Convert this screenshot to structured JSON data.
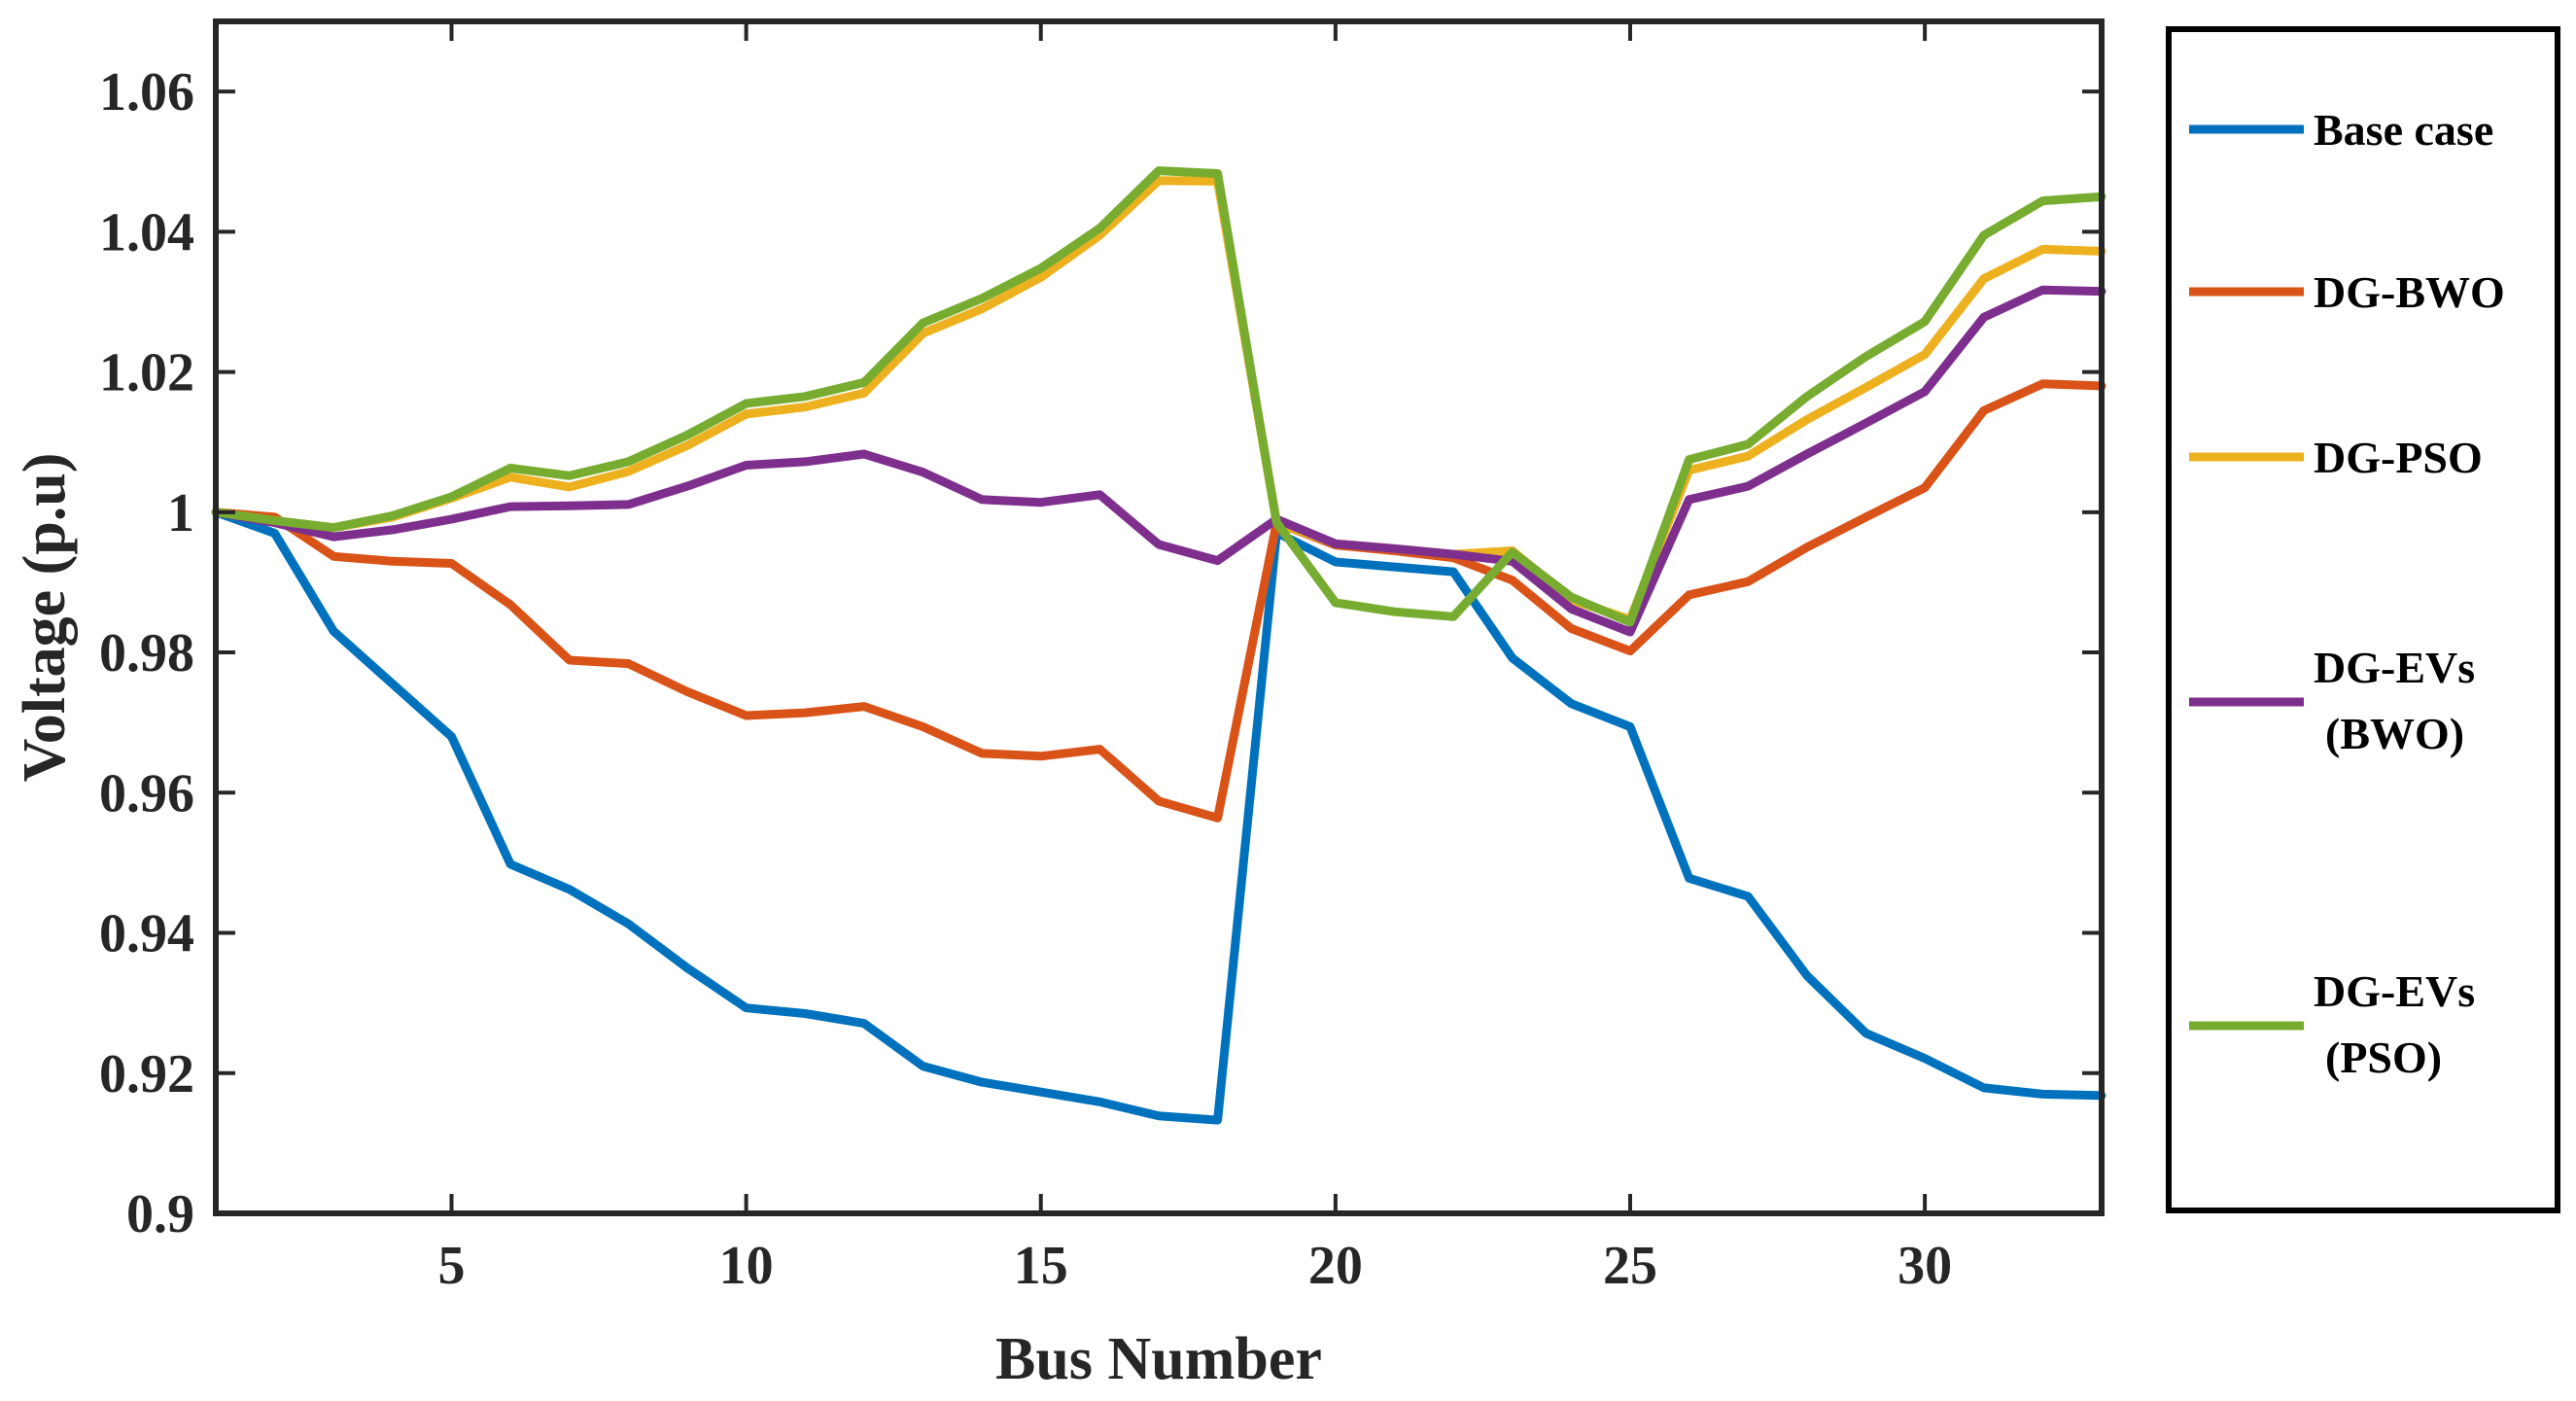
{
  "chart_data": {
    "type": "line",
    "title": "",
    "xlabel": "Bus Number",
    "ylabel": "Voltage (p.u)",
    "xlim": [
      1,
      33
    ],
    "ylim": [
      0.9,
      1.07
    ],
    "xticks": [
      5,
      10,
      15,
      20,
      25,
      30
    ],
    "yticks": [
      0.9,
      0.92,
      0.94,
      0.96,
      0.98,
      1,
      1.02,
      1.04,
      1.06
    ],
    "ytick_labels": [
      "0.9",
      "0.92",
      "0.94",
      "0.96",
      "0.98",
      "1",
      "1.02",
      "1.04",
      "1.06"
    ],
    "grid": false,
    "legend_position": "outside-right",
    "x": [
      1,
      2,
      3,
      4,
      5,
      6,
      7,
      8,
      9,
      10,
      11,
      12,
      13,
      14,
      15,
      16,
      17,
      18,
      19,
      20,
      21,
      22,
      23,
      24,
      25,
      26,
      27,
      28,
      29,
      30,
      31,
      32,
      33
    ],
    "series": [
      {
        "name": "Base case",
        "legend_lines": [
          "Base case"
        ],
        "color": "#0072BD",
        "values": [
          1.0,
          0.997,
          0.983,
          0.9755,
          0.968,
          0.9498,
          0.9462,
          0.9413,
          0.935,
          0.9293,
          0.9285,
          0.9271,
          0.921,
          0.9187,
          0.9173,
          0.9159,
          0.9139,
          0.9133,
          0.9971,
          0.9929,
          0.9922,
          0.9915,
          0.9792,
          0.9727,
          0.9694,
          0.9478,
          0.9452,
          0.9339,
          0.9257,
          0.9221,
          0.9179,
          0.917,
          0.9168
        ]
      },
      {
        "name": "DG-BWO",
        "legend_lines": [
          "DG-BWO"
        ],
        "color": "#D95319",
        "values": [
          1.0,
          0.9993,
          0.9937,
          0.993,
          0.9927,
          0.9868,
          0.9789,
          0.9784,
          0.9744,
          0.971,
          0.9714,
          0.9723,
          0.9694,
          0.9656,
          0.9652,
          0.9662,
          0.9588,
          0.9564,
          0.9985,
          0.9953,
          0.9945,
          0.9935,
          0.9903,
          0.9834,
          0.9802,
          0.9882,
          0.9901,
          0.995,
          0.9993,
          1.0035,
          1.0145,
          1.0183,
          1.018
        ]
      },
      {
        "name": "DG-PSO",
        "legend_lines": [
          "DG-PSO"
        ],
        "color": "#EDB120",
        "values": [
          1.0,
          0.9988,
          0.9978,
          0.9993,
          1.002,
          1.005,
          1.0036,
          1.0058,
          1.0095,
          1.014,
          1.015,
          1.017,
          1.0255,
          1.029,
          1.0335,
          1.0395,
          1.0473,
          1.0472,
          0.9985,
          0.9955,
          0.9948,
          0.994,
          0.9945,
          0.9875,
          0.9847,
          1.006,
          1.008,
          1.0132,
          1.0178,
          1.0225,
          1.0333,
          1.0375,
          1.0372
        ]
      },
      {
        "name": "DG-EVs (BWO)",
        "legend_lines": [
          "DG-EVs",
          "(BWO)"
        ],
        "color": "#7E2F8E",
        "values": [
          1.0,
          0.9985,
          0.9965,
          0.9975,
          0.999,
          1.0008,
          1.0009,
          1.0011,
          1.0037,
          1.0067,
          1.0072,
          1.0083,
          1.0057,
          1.0018,
          1.0014,
          1.0025,
          0.9954,
          0.9931,
          0.999,
          0.9955,
          0.9948,
          0.994,
          0.993,
          0.9862,
          0.9829,
          1.0018,
          1.0037,
          1.0083,
          1.0127,
          1.0172,
          1.0278,
          1.0317,
          1.0315
        ]
      },
      {
        "name": "DG-EVs (PSO)",
        "legend_lines": [
          "DG-EVs",
          "(PSO)"
        ],
        "color": "#77AC30",
        "values": [
          1.0,
          0.9988,
          0.9978,
          0.9995,
          1.0022,
          1.0063,
          1.0052,
          1.0072,
          1.011,
          1.0155,
          1.0165,
          1.0185,
          1.027,
          1.0305,
          1.0348,
          1.0405,
          1.0487,
          1.0483,
          0.9985,
          0.9871,
          0.9858,
          0.9851,
          0.9943,
          0.9879,
          0.9843,
          1.0075,
          1.0097,
          1.0165,
          1.0222,
          1.0272,
          1.0395,
          1.0444,
          1.045
        ]
      }
    ]
  }
}
